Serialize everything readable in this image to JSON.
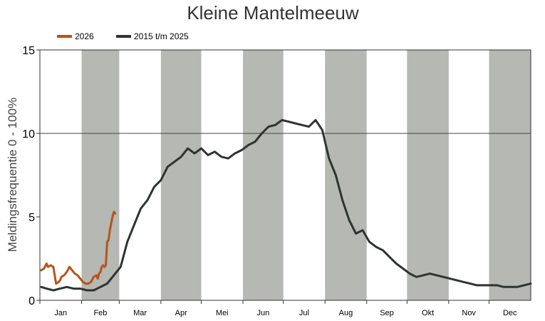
{
  "chart_data": {
    "type": "line",
    "title": "Kleine Mantelmeeuw",
    "ylabel": "Meldingsfrequentie 0 - 100%",
    "xlabel": "",
    "ylim": [
      0,
      15
    ],
    "yticks": [
      "0",
      "5",
      "10",
      "15"
    ],
    "months": [
      "Jan",
      "Feb",
      "Mar",
      "Apr",
      "Mei",
      "Jun",
      "Jul",
      "Aug",
      "Sep",
      "Okt",
      "Nov",
      "Dec"
    ],
    "shaded_months": [
      "Feb",
      "Apr",
      "Jun",
      "Aug",
      "Okt",
      "Dec"
    ],
    "gridline": 10,
    "legend_position": "top-left",
    "series": [
      {
        "name": "2026",
        "color": "#b5541a",
        "x_day": [
          1,
          3,
          5,
          6,
          8,
          10,
          12,
          14,
          15,
          16,
          18,
          20,
          22,
          24,
          26,
          28,
          30,
          32,
          34,
          36,
          38,
          40,
          42,
          43,
          44,
          45,
          46,
          47,
          48,
          49,
          50,
          51,
          52,
          53,
          54,
          55,
          56
        ],
        "values": [
          1.8,
          1.9,
          2.2,
          2.0,
          2.1,
          2.0,
          1.0,
          1.1,
          1.2,
          1.4,
          1.5,
          1.7,
          2.0,
          1.8,
          1.6,
          1.5,
          1.3,
          1.1,
          1.0,
          1.0,
          1.1,
          1.4,
          1.5,
          1.3,
          1.6,
          1.7,
          2.0,
          2.1,
          2.0,
          2.1,
          3.5,
          3.6,
          4.2,
          4.6,
          5.0,
          5.3,
          5.2
        ]
      },
      {
        "name": "2015 t/m 2025",
        "color": "#2d3431",
        "x_day": [
          1,
          5,
          10,
          15,
          20,
          25,
          30,
          35,
          40,
          45,
          50,
          55,
          60,
          65,
          70,
          75,
          80,
          85,
          90,
          95,
          100,
          105,
          110,
          115,
          120,
          125,
          130,
          135,
          140,
          145,
          150,
          155,
          160,
          165,
          170,
          175,
          180,
          185,
          190,
          195,
          200,
          205,
          210,
          215,
          220,
          225,
          230,
          235,
          240,
          245,
          250,
          255,
          260,
          265,
          270,
          275,
          280,
          285,
          290,
          295,
          300,
          305,
          310,
          315,
          320,
          325,
          330,
          335,
          340,
          345,
          350,
          355,
          360,
          365
        ],
        "values": [
          0.8,
          0.7,
          0.6,
          0.7,
          0.8,
          0.7,
          0.7,
          0.6,
          0.6,
          0.8,
          1.0,
          1.5,
          2.0,
          3.5,
          4.5,
          5.5,
          6.0,
          6.8,
          7.2,
          8.0,
          8.3,
          8.6,
          9.1,
          8.8,
          9.1,
          8.7,
          8.9,
          8.6,
          8.5,
          8.8,
          9.0,
          9.3,
          9.5,
          10.0,
          10.4,
          10.5,
          10.8,
          10.7,
          10.6,
          10.5,
          10.4,
          10.8,
          10.2,
          8.5,
          7.5,
          6.0,
          4.8,
          4.0,
          4.2,
          3.5,
          3.2,
          3.0,
          2.6,
          2.2,
          1.9,
          1.6,
          1.4,
          1.5,
          1.6,
          1.5,
          1.4,
          1.3,
          1.2,
          1.1,
          1.0,
          0.9,
          0.9,
          0.9,
          0.9,
          0.8,
          0.8,
          0.8,
          0.9,
          1.0
        ]
      }
    ]
  }
}
